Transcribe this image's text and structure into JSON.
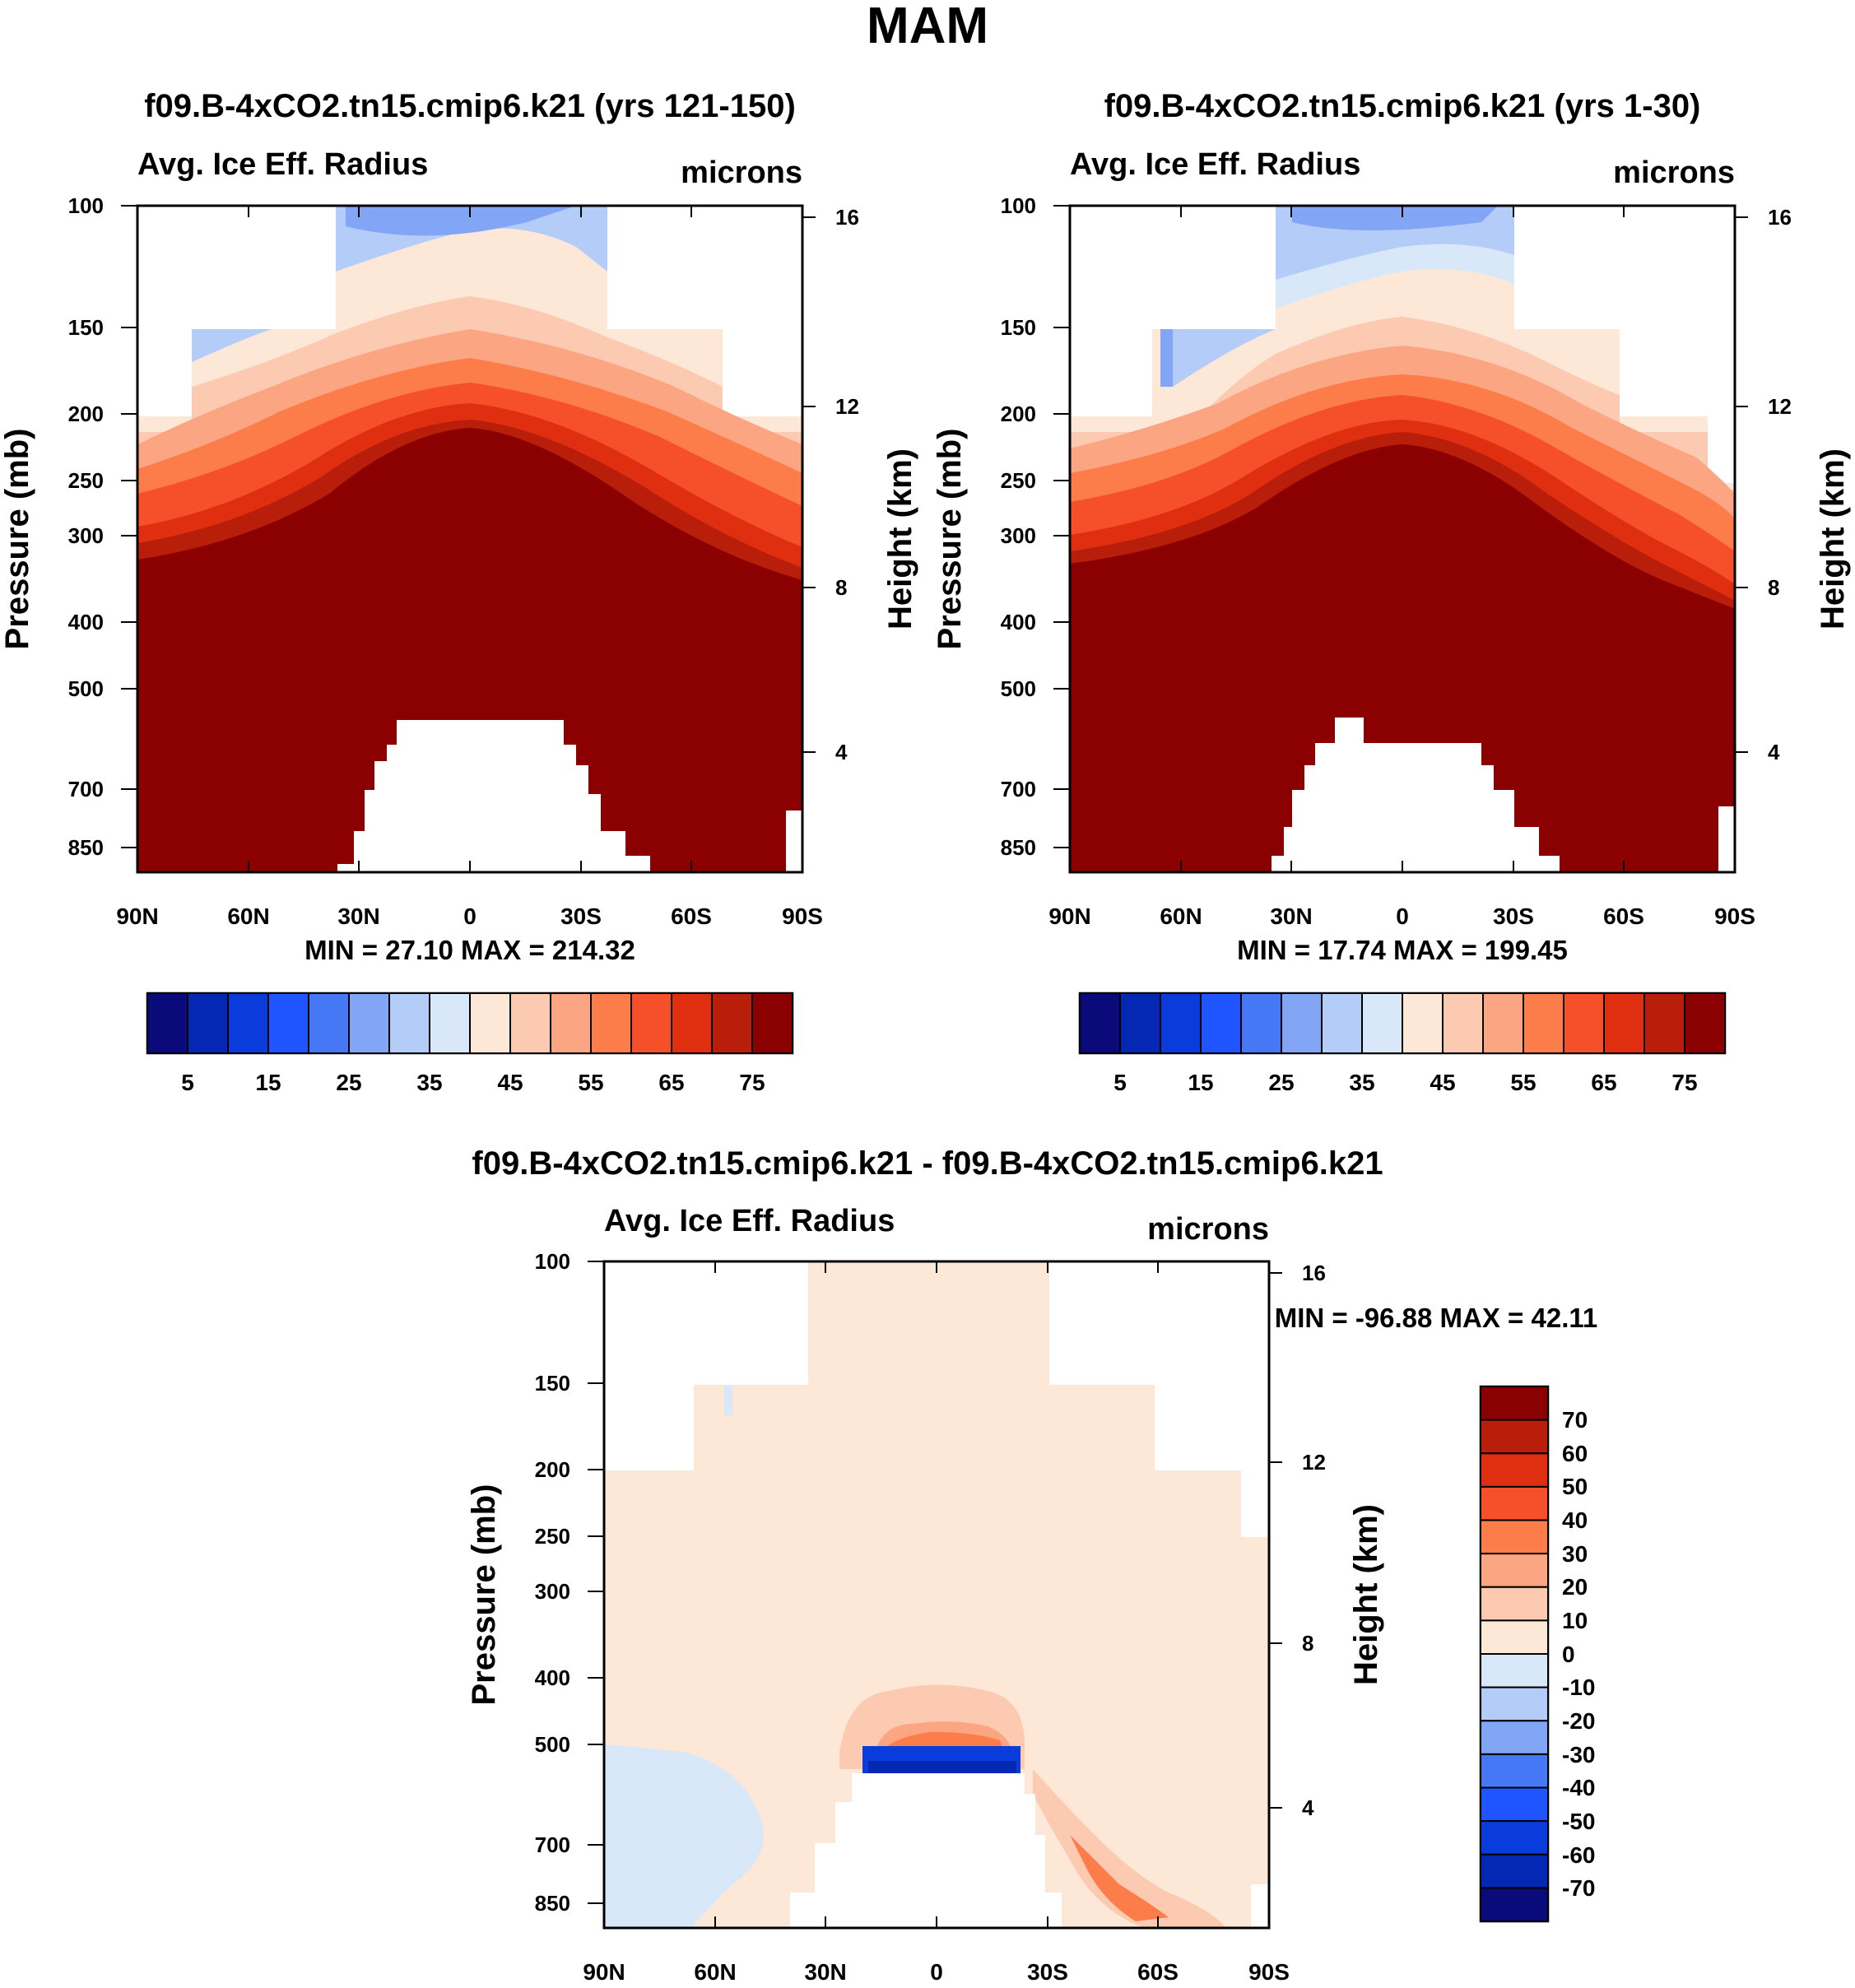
{
  "figure": {
    "title": "MAM"
  },
  "colors": {
    "palette": [
      "#0a0a7a",
      "#0428b4",
      "#0a3cdc",
      "#1e55ff",
      "#4678f5",
      "#82a5f5",
      "#b4ccf8",
      "#d8e8f8",
      "#fde8d8",
      "#fccab0",
      "#fca582",
      "#fc7c4a",
      "#f5502a",
      "#e02e10",
      "#b81e0a",
      "#8b0000"
    ],
    "missing": "#ffffff"
  },
  "chart_data": [
    {
      "type": "contour",
      "title": "f09.B-4xCO2.tn15.cmip6.k21 (yrs 121-150)",
      "left_label": "Avg. Ice Eff. Radius",
      "right_label": "microns",
      "ylabel": "Pressure (mb)",
      "ylabel_right": "Height (km)",
      "xlabel": "",
      "x_ticks": [
        "90N",
        "60N",
        "30N",
        "0",
        "30S",
        "60S",
        "90S"
      ],
      "x_range": [
        90,
        -90
      ],
      "y_ticks": [
        "100",
        "150",
        "200",
        "250",
        "300",
        "400",
        "500",
        "700",
        "850"
      ],
      "y_range_mb": [
        100,
        1000
      ],
      "y_scale": "log",
      "y_right_ticks": [
        "16",
        "12",
        "8",
        "4"
      ],
      "stats": "MIN =  27.10   MAX = 214.32",
      "min": 27.1,
      "max": 214.32,
      "levels": [
        5,
        10,
        15,
        20,
        25,
        30,
        35,
        40,
        45,
        50,
        55,
        60,
        65,
        70,
        75
      ],
      "colorbar_labels": [
        "5",
        "15",
        "25",
        "35",
        "45",
        "55",
        "65",
        "75"
      ],
      "colorbar_orientation": "horizontal"
    },
    {
      "type": "contour",
      "title": "f09.B-4xCO2.tn15.cmip6.k21 (yrs 1-30)",
      "left_label": "Avg. Ice Eff. Radius",
      "right_label": "microns",
      "ylabel": "Pressure (mb)",
      "ylabel_right": "Height (km)",
      "xlabel": "",
      "x_ticks": [
        "90N",
        "60N",
        "30N",
        "0",
        "30S",
        "60S",
        "90S"
      ],
      "x_range": [
        90,
        -90
      ],
      "y_ticks": [
        "100",
        "150",
        "200",
        "250",
        "300",
        "400",
        "500",
        "700",
        "850"
      ],
      "y_range_mb": [
        100,
        1000
      ],
      "y_scale": "log",
      "y_right_ticks": [
        "16",
        "12",
        "8",
        "4"
      ],
      "stats": "MIN =  17.74   MAX = 199.45",
      "min": 17.74,
      "max": 199.45,
      "levels": [
        5,
        10,
        15,
        20,
        25,
        30,
        35,
        40,
        45,
        50,
        55,
        60,
        65,
        70,
        75
      ],
      "colorbar_labels": [
        "5",
        "15",
        "25",
        "35",
        "45",
        "55",
        "65",
        "75"
      ],
      "colorbar_orientation": "horizontal"
    },
    {
      "type": "contour",
      "title": "f09.B-4xCO2.tn15.cmip6.k21 - f09.B-4xCO2.tn15.cmip6.k21",
      "left_label": "Avg. Ice Eff. Radius",
      "right_label": "microns",
      "ylabel": "Pressure (mb)",
      "ylabel_right": "Height (km)",
      "xlabel": "",
      "x_ticks": [
        "90N",
        "60N",
        "30N",
        "0",
        "30S",
        "60S",
        "90S"
      ],
      "x_range": [
        90,
        -90
      ],
      "y_ticks": [
        "100",
        "150",
        "200",
        "250",
        "300",
        "400",
        "500",
        "700",
        "850"
      ],
      "y_range_mb": [
        100,
        1000
      ],
      "y_scale": "log",
      "y_right_ticks": [
        "16",
        "12",
        "8",
        "4"
      ],
      "stats": "MIN = -96.88   MAX =  42.11",
      "min": -96.88,
      "max": 42.11,
      "levels": [
        -70,
        -60,
        -50,
        -40,
        -30,
        -20,
        -10,
        0,
        10,
        20,
        30,
        40,
        50,
        60,
        70
      ],
      "colorbar_labels": [
        "70",
        "60",
        "50",
        "40",
        "30",
        "20",
        "10",
        "0",
        "-10",
        "-20",
        "-30",
        "-40",
        "-50",
        "-60",
        "-70"
      ],
      "colorbar_orientation": "vertical"
    }
  ]
}
